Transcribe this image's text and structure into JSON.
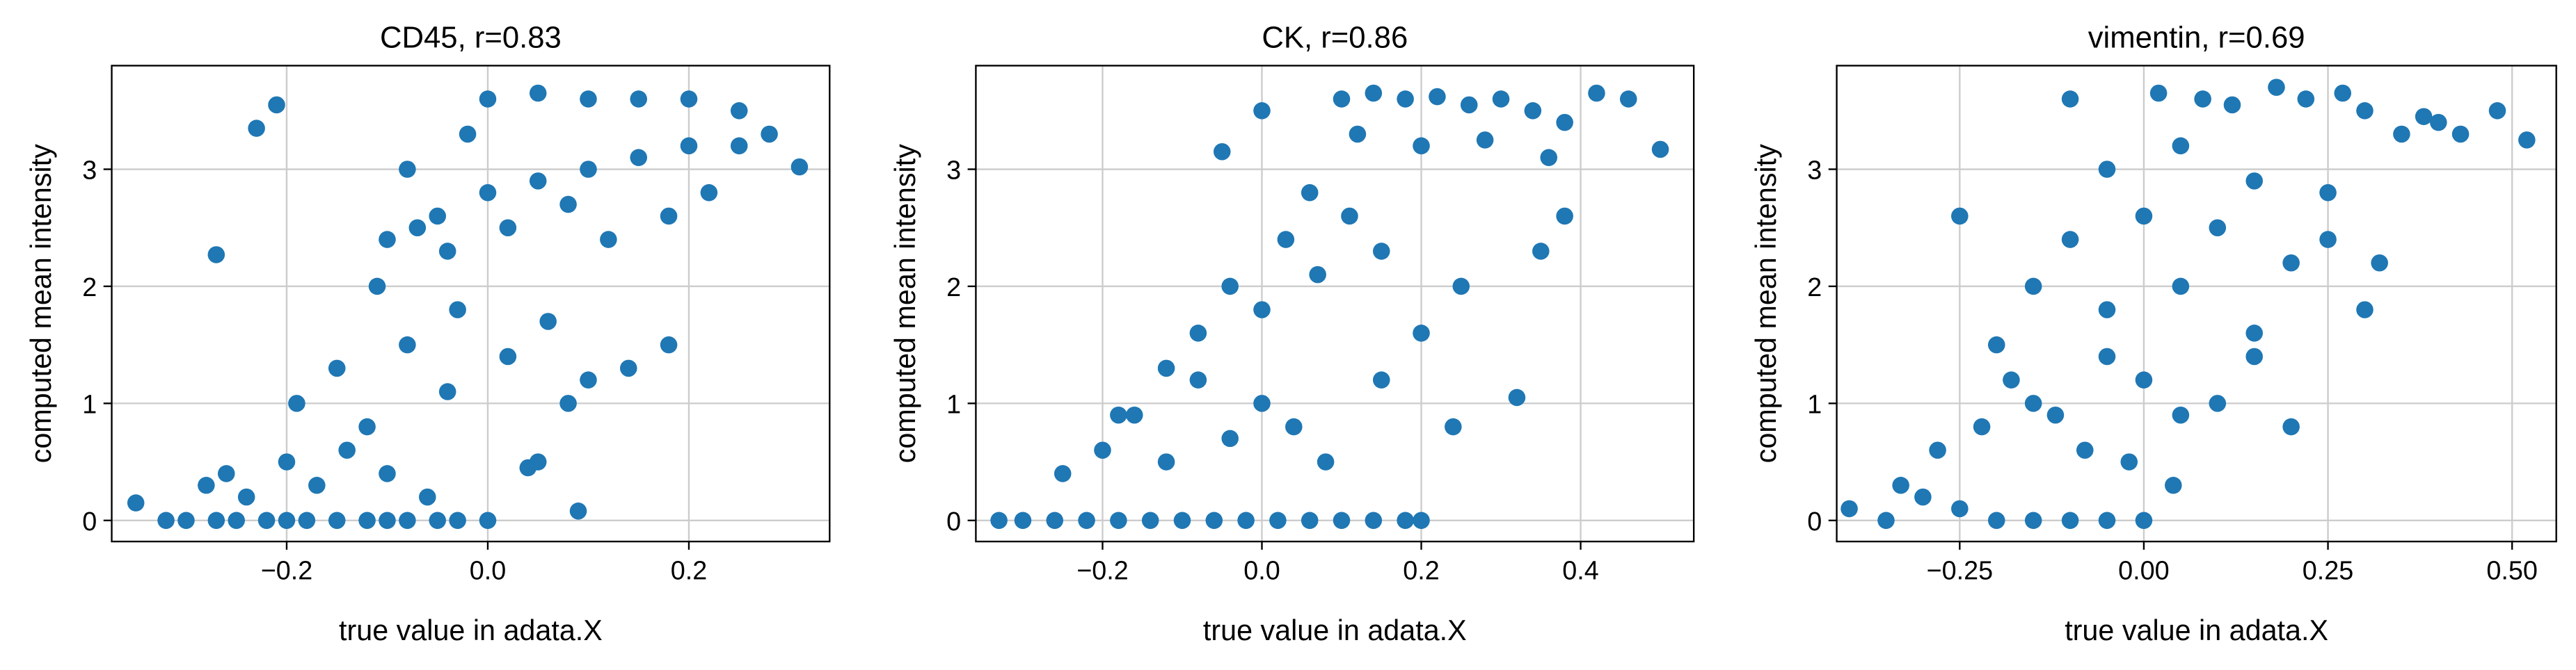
{
  "chart_data": [
    {
      "type": "scatter",
      "title": "CD45, r=0.83",
      "xlabel": "true value in adata.X",
      "ylabel": "computed mean intensity",
      "color": "#1f77b4",
      "grid": true,
      "xlim": [
        -0.374,
        0.34
      ],
      "ylim": [
        -0.18,
        3.885
      ],
      "xticks": [
        {
          "value": -0.2,
          "label": "−0.2"
        },
        {
          "value": 0,
          "label": "0.0"
        },
        0.2
      ],
      "yticks": [
        0,
        1,
        2,
        3
      ],
      "x": [
        -0.35,
        -0.32,
        -0.3,
        -0.27,
        -0.25,
        -0.22,
        -0.2,
        -0.18,
        -0.15,
        -0.12,
        -0.1,
        -0.08,
        -0.05,
        -0.03,
        -0.28,
        -0.26,
        -0.24,
        -0.2,
        -0.17,
        -0.14,
        -0.1,
        -0.06,
        -0.19,
        -0.15,
        -0.12,
        -0.08,
        -0.04,
        0.0,
        0.04,
        0.08,
        -0.11,
        -0.07,
        -0.03,
        0.02,
        0.06,
        0.1,
        0.14,
        -0.23,
        -0.21,
        -0.27,
        -0.08,
        -0.02,
        0.0,
        0.05,
        0.1,
        0.15,
        0.2,
        0.25,
        0.28,
        0.31,
        -0.05,
        0.0,
        0.05,
        0.1,
        0.15,
        0.2,
        0.25,
        -0.1,
        -0.04,
        0.02,
        0.08,
        0.12,
        0.18,
        0.22,
        0.09,
        0.05,
        0.18
      ],
      "values": [
        0.15,
        0,
        0,
        0,
        0,
        0,
        0,
        0,
        0,
        0,
        0,
        0,
        0,
        0,
        0.3,
        0.4,
        0.2,
        0.5,
        0.3,
        0.6,
        0.4,
        0.2,
        1.0,
        1.3,
        0.8,
        1.5,
        1.1,
        0.0,
        0.45,
        1.0,
        2.0,
        2.5,
        1.8,
        1.4,
        1.7,
        1.2,
        1.3,
        3.35,
        3.55,
        2.27,
        3.0,
        3.3,
        3.6,
        3.65,
        3.6,
        3.6,
        3.6,
        3.5,
        3.3,
        3.02,
        2.6,
        2.8,
        2.9,
        3.0,
        3.1,
        3.2,
        3.2,
        2.4,
        2.3,
        2.5,
        2.7,
        2.4,
        2.6,
        2.8,
        0.08,
        0.5,
        1.5
      ]
    },
    {
      "type": "scatter",
      "title": "CK, r=0.86",
      "xlabel": "true value in adata.X",
      "ylabel": "computed mean intensity",
      "color": "#1f77b4",
      "grid": true,
      "xlim": [
        -0.359,
        0.542
      ],
      "ylim": [
        -0.18,
        3.885
      ],
      "xticks": [
        {
          "value": -0.2,
          "label": "−0.2"
        },
        {
          "value": 0,
          "label": "0.0"
        },
        0.2,
        0.4
      ],
      "yticks": [
        0,
        1,
        2,
        3
      ],
      "x": [
        -0.33,
        -0.3,
        -0.26,
        -0.22,
        -0.18,
        -0.14,
        -0.1,
        -0.06,
        -0.02,
        0.02,
        0.06,
        0.1,
        0.14,
        0.18,
        0.2,
        -0.25,
        -0.2,
        -0.16,
        -0.12,
        -0.08,
        -0.04,
        0.0,
        0.04,
        0.08,
        -0.18,
        -0.12,
        -0.08,
        -0.04,
        0.0,
        0.03,
        0.07,
        0.11,
        0.15,
        0.2,
        0.24,
        0.1,
        0.14,
        0.18,
        0.22,
        0.26,
        0.3,
        0.34,
        0.38,
        0.42,
        0.46,
        0.5,
        0.12,
        0.2,
        0.28,
        0.36,
        -0.05,
        0.0,
        0.32,
        0.35,
        0.38,
        0.06,
        0.15,
        0.25
      ],
      "values": [
        0,
        0,
        0,
        0,
        0,
        0,
        0,
        0,
        0,
        0,
        0,
        0,
        0,
        0,
        0,
        0.4,
        0.6,
        0.9,
        0.5,
        1.2,
        0.7,
        1.0,
        0.8,
        0.5,
        0.9,
        1.3,
        1.6,
        2.0,
        1.8,
        2.4,
        2.1,
        2.6,
        2.3,
        1.6,
        0.8,
        3.6,
        3.65,
        3.6,
        3.62,
        3.55,
        3.6,
        3.5,
        3.4,
        3.65,
        3.6,
        3.17,
        3.3,
        3.2,
        3.25,
        3.1,
        3.15,
        3.5,
        1.05,
        2.3,
        2.6,
        2.8,
        1.2,
        2.0
      ]
    },
    {
      "type": "scatter",
      "title": "vimentin, r=0.69",
      "xlabel": "true value in adata.X",
      "ylabel": "computed mean intensity",
      "color": "#1f77b4",
      "grid": true,
      "xlim": [
        -0.417,
        0.56
      ],
      "ylim": [
        -0.18,
        3.885
      ],
      "xticks": [
        {
          "value": -0.25,
          "label": "−0.25"
        },
        {
          "value": 0,
          "label": "0.00"
        },
        0.25,
        {
          "value": 0.5,
          "label": "0.50"
        }
      ],
      "yticks": [
        0,
        1,
        2,
        3
      ],
      "x": [
        -0.4,
        -0.35,
        -0.3,
        -0.25,
        -0.2,
        -0.15,
        -0.1,
        -0.05,
        0.0,
        -0.33,
        -0.28,
        -0.22,
        -0.18,
        -0.12,
        -0.08,
        -0.02,
        0.04,
        -0.25,
        -0.2,
        -0.15,
        -0.1,
        -0.05,
        0.0,
        0.05,
        0.1,
        0.15,
        0.2,
        -0.1,
        -0.05,
        0.0,
        0.05,
        0.1,
        0.15,
        0.2,
        0.25,
        0.3,
        0.02,
        0.08,
        0.12,
        0.18,
        0.22,
        0.27,
        0.3,
        0.35,
        0.4,
        0.43,
        0.48,
        0.52,
        0.38,
        -0.15,
        -0.05,
        0.05,
        0.15,
        0.25,
        0.32
      ],
      "values": [
        0.1,
        0.0,
        0.2,
        0.1,
        0.0,
        0.0,
        0.0,
        0.0,
        0.0,
        0.3,
        0.6,
        0.8,
        1.2,
        0.9,
        0.6,
        0.5,
        0.3,
        2.6,
        1.5,
        2.0,
        2.4,
        1.8,
        1.2,
        0.9,
        1.0,
        1.4,
        0.8,
        3.6,
        3.0,
        2.6,
        3.2,
        2.5,
        2.9,
        2.2,
        2.4,
        1.8,
        3.65,
        3.6,
        3.55,
        3.7,
        3.6,
        3.65,
        3.5,
        3.3,
        3.4,
        3.3,
        3.5,
        3.25,
        3.45,
        1.0,
        1.4,
        2.0,
        1.6,
        2.8,
        2.2
      ]
    }
  ]
}
